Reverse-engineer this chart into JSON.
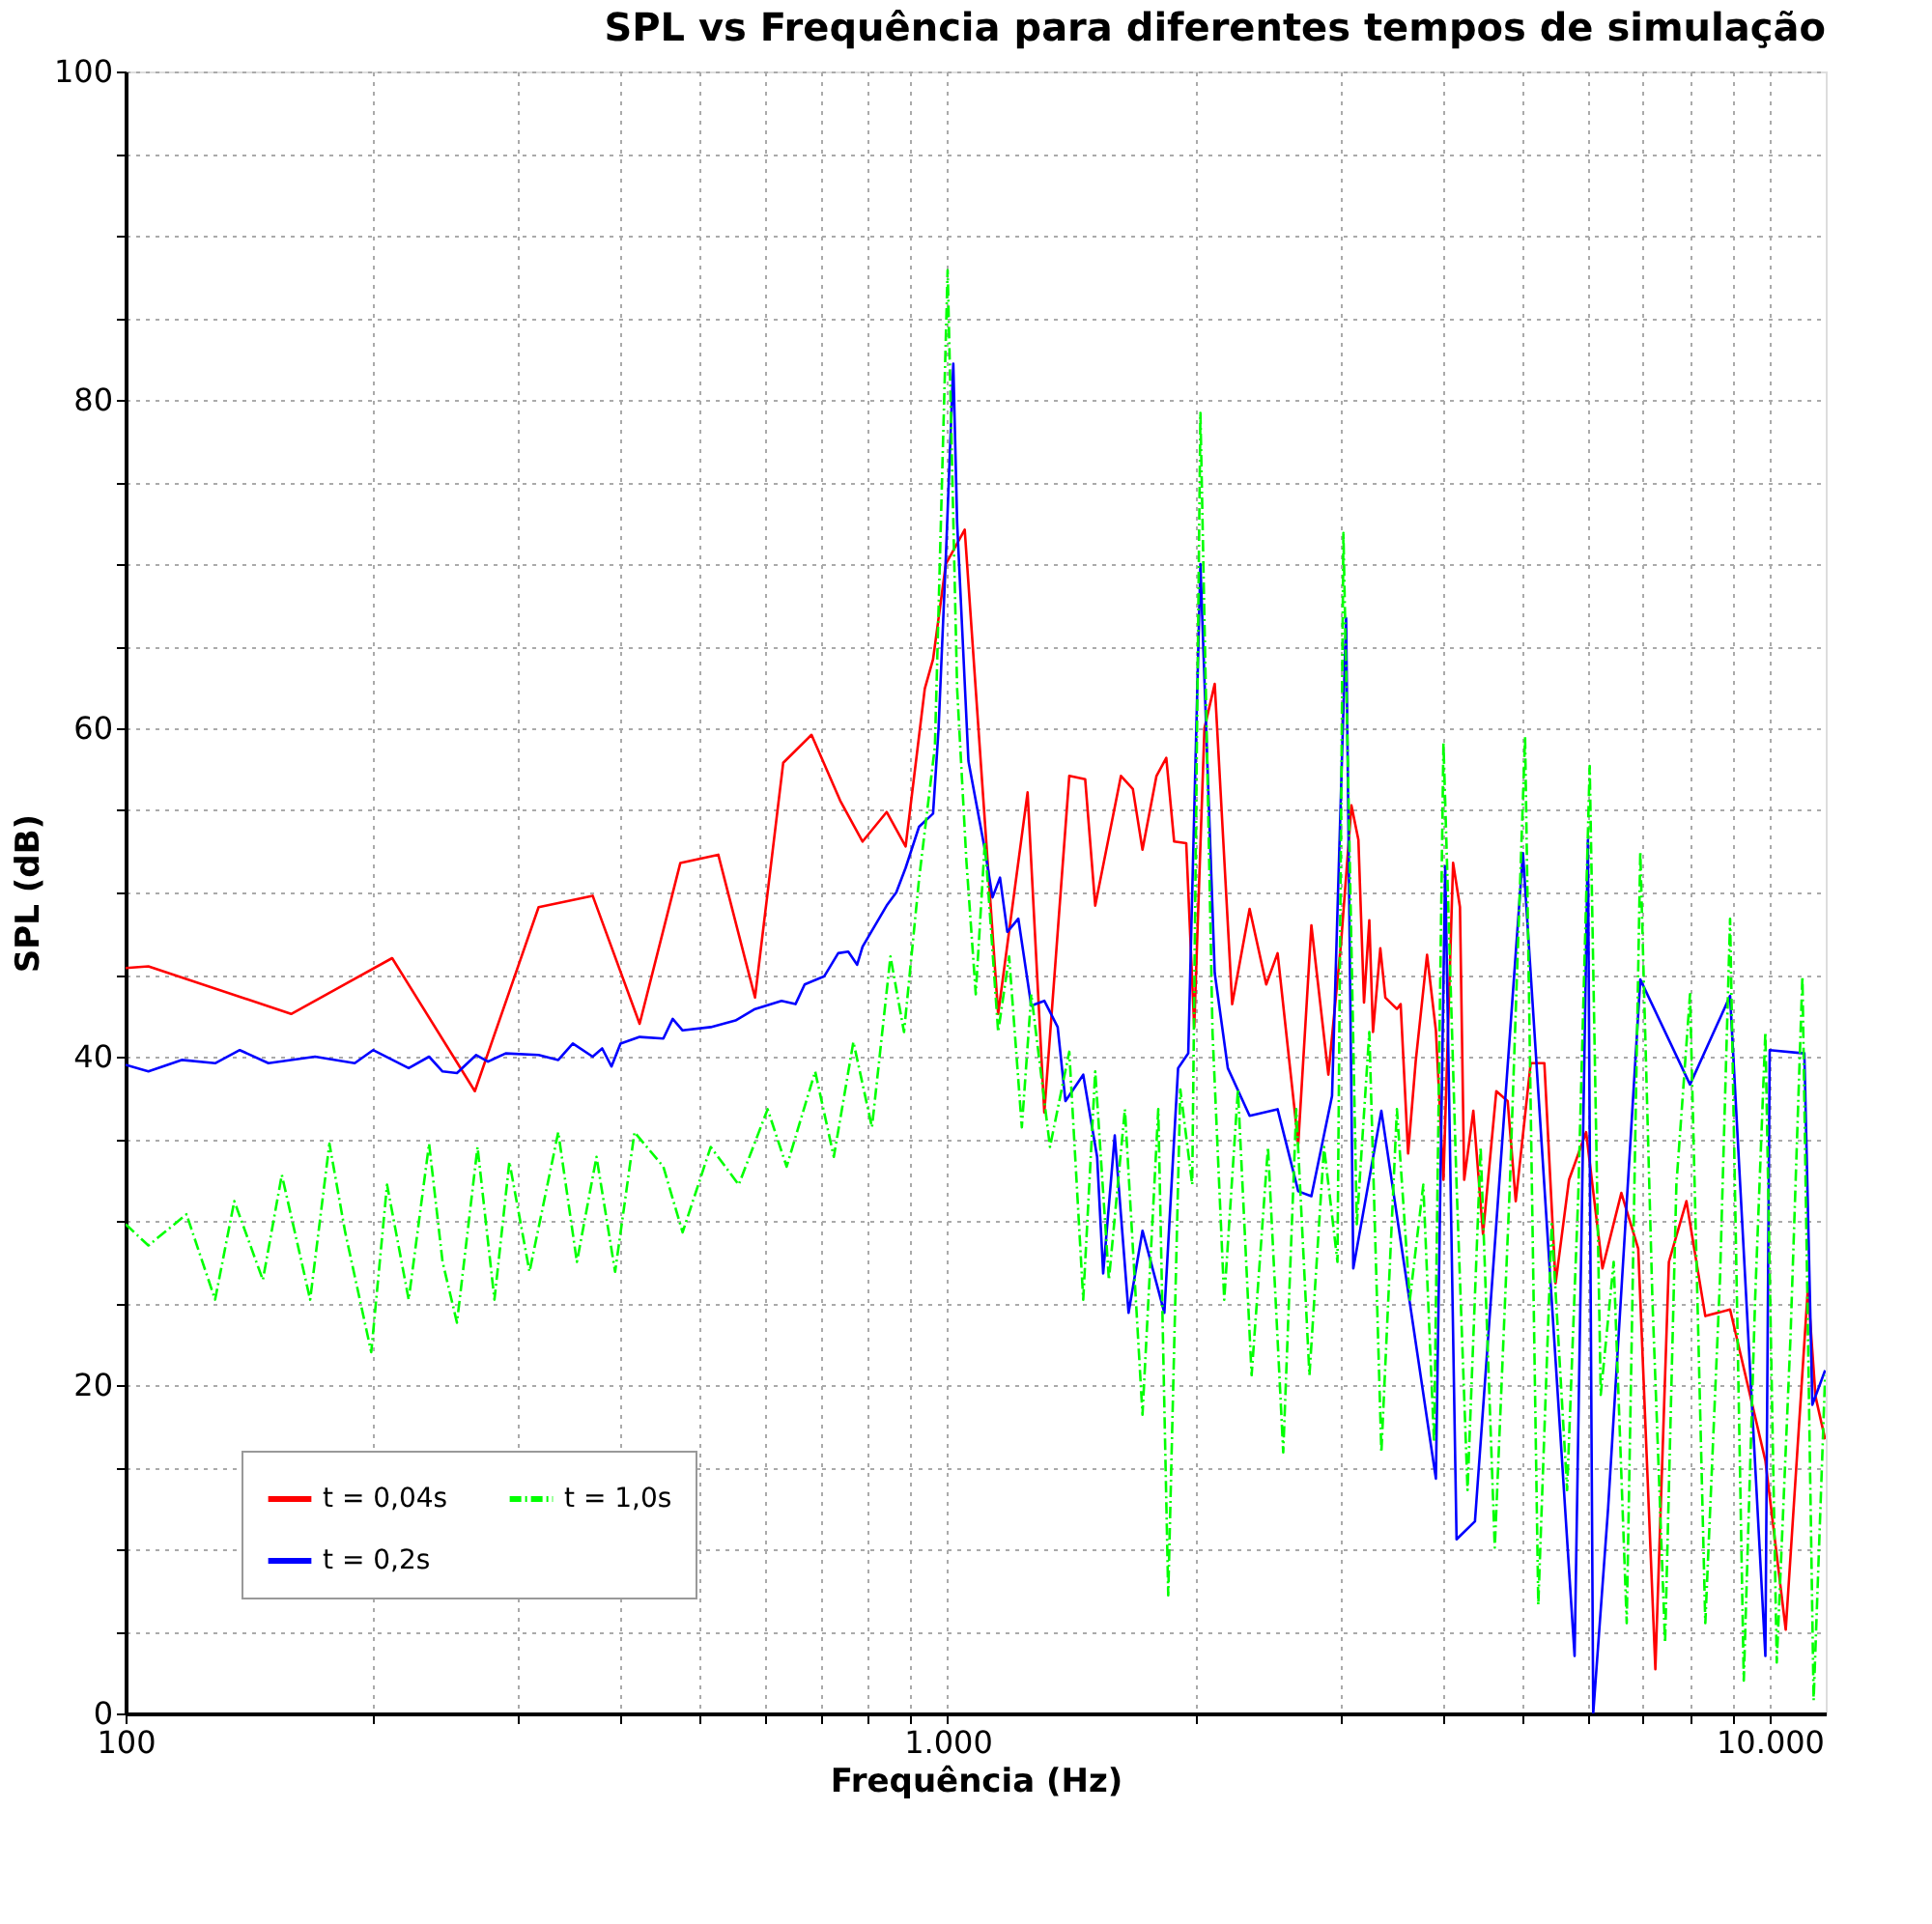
{
  "chart_data": {
    "type": "line",
    "title": "SPL vs Frequência para diferentes tempos de simulação",
    "xlabel": "Frequência (Hz)",
    "ylabel": "SPL (dB)",
    "log": "x",
    "grid": true,
    "legend": "bottom left",
    "xlim": [
      100,
      11700
    ],
    "xticks": [
      {
        "value": 100,
        "label": "100"
      },
      {
        "value": 200,
        "label": null
      },
      {
        "value": 300,
        "label": null
      },
      {
        "value": 400,
        "label": null
      },
      {
        "value": 500,
        "label": null
      },
      {
        "value": 600,
        "label": null
      },
      {
        "value": 700,
        "label": null
      },
      {
        "value": 800,
        "label": null
      },
      {
        "value": 900,
        "label": null
      },
      {
        "value": 1000,
        "label": "1.000"
      },
      {
        "value": 2000,
        "label": null
      },
      {
        "value": 3000,
        "label": null
      },
      {
        "value": 4000,
        "label": null
      },
      {
        "value": 5000,
        "label": null
      },
      {
        "value": 6000,
        "label": null
      },
      {
        "value": 7000,
        "label": null
      },
      {
        "value": 8000,
        "label": null
      },
      {
        "value": 9000,
        "label": null
      },
      {
        "value": 10000,
        "label": "10.000"
      }
    ],
    "ylim": [
      0,
      100
    ],
    "yticks": [
      0,
      {
        "value": 5,
        "label": null
      },
      {
        "value": 10,
        "label": null
      },
      {
        "value": 15,
        "label": null
      },
      20,
      {
        "value": 25,
        "label": null
      },
      {
        "value": 30,
        "label": null
      },
      {
        "value": 35,
        "label": null
      },
      40,
      {
        "value": 45,
        "label": null
      },
      {
        "value": 50,
        "label": null
      },
      {
        "value": 55,
        "label": null
      },
      60,
      {
        "value": 65,
        "label": null
      },
      {
        "value": 70,
        "label": null
      },
      {
        "value": 75,
        "label": null
      },
      80,
      {
        "value": 85,
        "label": null
      },
      {
        "value": 90,
        "label": null
      },
      {
        "value": 95,
        "label": null
      },
      100
    ],
    "series": [
      {
        "name": "t = 0,04s",
        "color": "#ff0000",
        "line_style": "solid",
        "x": [
          100,
          106.6,
          159,
          211,
          266,
          318,
          370,
          422,
          473,
          526,
          583,
          631,
          683,
          740,
          788,
          843,
          889,
          938,
          960,
          995,
          1049,
          1152,
          1251,
          1311,
          1406,
          1470,
          1512,
          1625,
          1680,
          1726,
          1795,
          1845,
          1886,
          1951,
          1995,
          2053,
          2113,
          2219,
          2330,
          2441,
          2520,
          2670,
          2770,
          2905,
          3010,
          3099,
          3160,
          3210,
          3258,
          3292,
          3360,
          3408,
          3520,
          3557,
          3632,
          3710,
          3830,
          3926,
          4010,
          4120,
          4200,
          4250,
          4360,
          4480,
          4650,
          4800,
          4910,
          5120,
          5320,
          5490,
          5700,
          5980,
          6260,
          6600,
          6920,
          7260,
          7540,
          7920,
          8350,
          8950,
          9880,
          10460,
          11130,
          11370,
          11680
        ],
        "values": [
          45.4,
          45.5,
          42.6,
          46.0,
          37.9,
          49.1,
          49.8,
          42.0,
          51.8,
          52.3,
          43.6,
          57.9,
          59.6,
          55.6,
          53.1,
          54.9,
          52.8,
          62.4,
          64.2,
          70.0,
          72.1,
          42.6,
          56.1,
          36.6,
          57.1,
          56.9,
          49.2,
          57.1,
          56.3,
          52.6,
          57.1,
          58.2,
          53.1,
          53.0,
          41.8,
          60.0,
          62.7,
          43.2,
          49.0,
          44.4,
          46.3,
          34.7,
          48.0,
          38.9,
          46.9,
          55.3,
          53.2,
          43.3,
          48.3,
          41.5,
          46.6,
          43.6,
          42.9,
          43.2,
          34.1,
          39.7,
          46.2,
          41.6,
          32.5,
          51.8,
          49.1,
          32.5,
          36.7,
          29.2,
          37.9,
          37.3,
          31.2,
          39.6,
          39.6,
          26.2,
          32.5,
          35.4,
          27.1,
          31.7,
          28.3,
          2.7,
          27.5,
          31.2,
          24.2,
          24.6,
          15.4,
          5.1,
          25.9,
          19.3,
          16.7
        ]
      },
      {
        "name": "t = 0,2s",
        "color": "#0000ff",
        "line_style": "solid",
        "x": [
          100,
          106.6,
          117,
          128.5,
          137.7,
          149.2,
          170,
          190,
          200,
          221,
          234,
          243,
          253,
          267,
          276,
          290,
          318,
          336,
          350,
          370,
          380,
          390,
          400,
          422,
          451,
          463,
          476,
          515,
          552,
          583,
          628,
          653,
          670,
          708,
          736,
          757,
          776,
          788,
          843,
          866,
          889,
          923,
          960,
          975,
          995,
          1016,
          1027,
          1060,
          1110,
          1134,
          1158,
          1182,
          1219,
          1264,
          1311,
          1361,
          1391,
          1462,
          1520,
          1546,
          1597,
          1660,
          1726,
          1835,
          1907,
          1962,
          2030,
          2113,
          2192,
          2330,
          2520,
          2670,
          2770,
          2935,
          3053,
          3115,
          3370,
          3926,
          4030,
          4160,
          4380,
          5010,
          5790,
          6010,
          6100,
          6360,
          6960,
          8000,
          8950,
          9880,
          10000,
          11020,
          11270,
          11680
        ],
        "values": [
          39.5,
          39.1,
          39.8,
          39.6,
          40.4,
          39.6,
          40.0,
          39.6,
          40.4,
          39.3,
          40.0,
          39.1,
          39.0,
          40.1,
          39.7,
          40.2,
          40.1,
          39.8,
          40.8,
          40.0,
          40.5,
          39.4,
          40.8,
          41.2,
          41.1,
          42.3,
          41.6,
          41.8,
          42.2,
          42.9,
          43.4,
          43.2,
          44.4,
          44.9,
          46.3,
          46.4,
          45.6,
          46.7,
          49.2,
          50.0,
          51.5,
          54.0,
          54.8,
          60.0,
          70.4,
          82.2,
          72.5,
          58.0,
          52.6,
          49.7,
          50.9,
          47.6,
          48.4,
          43.1,
          43.4,
          41.8,
          37.3,
          38.9,
          33.9,
          26.8,
          35.2,
          24.4,
          29.4,
          24.4,
          39.3,
          40.2,
          70.0,
          45.1,
          39.3,
          36.4,
          36.8,
          31.8,
          31.5,
          37.6,
          66.7,
          27.1,
          36.7,
          14.3,
          51.6,
          10.6,
          11.7,
          52.4,
          3.5,
          53.2,
          0,
          12.5,
          44.7,
          38.3,
          43.7,
          3.5,
          40.4,
          40.2,
          18.8,
          20.9
        ]
      },
      {
        "name": "t = 1,0s",
        "color": "#00ff00",
        "line_style": "dashed",
        "x": [
          100,
          106.6,
          118.6,
          128.5,
          135.6,
          146.9,
          154.9,
          167.7,
          177,
          185,
          199,
          208,
          221,
          234,
          243,
          253,
          268,
          281,
          293,
          310,
          336,
          354,
          374,
          394,
          416,
          451,
          476,
          515,
          557,
          604,
          637,
          690,
          727,
          768,
          809,
          852,
          885,
          923,
          965,
          1000,
          1027,
          1054,
          1082,
          1110,
          1152,
          1188,
          1231,
          1264,
          1332,
          1406,
          1462,
          1512,
          1571,
          1643,
          1726,
          1804,
          1855,
          1919,
          1984,
          2030,
          2100,
          2170,
          2255,
          2343,
          2453,
          2560,
          2655,
          2755,
          2870,
          2980,
          3030,
          3146,
          3258,
          3370,
          3520,
          3650,
          3790,
          3906,
          4010,
          4160,
          4290,
          4450,
          4630,
          4830,
          5040,
          5230,
          5430,
          5670,
          5850,
          6040,
          6230,
          6460,
          6700,
          6960,
          7200,
          7460,
          7700,
          8000,
          8350,
          8700,
          8950,
          9300,
          9600,
          9880,
          10200,
          10600,
          10960,
          11310,
          11680
        ],
        "values": [
          29.8,
          28.5,
          30.4,
          25.2,
          31.2,
          26.4,
          32.8,
          25.2,
          34.7,
          29.3,
          22.0,
          32.2,
          25.2,
          34.7,
          27.5,
          23.8,
          34.5,
          25.2,
          33.6,
          26.9,
          35.4,
          27.5,
          33.9,
          26.9,
          35.4,
          33.3,
          29.3,
          34.5,
          32.2,
          36.8,
          33.3,
          39.1,
          33.9,
          40.9,
          35.7,
          46.1,
          41.5,
          50.8,
          58.9,
          87.9,
          62.4,
          51.9,
          43.8,
          53.1,
          41.5,
          46.1,
          35.7,
          43.8,
          34.5,
          40.3,
          25.2,
          39.1,
          26.4,
          36.8,
          18.2,
          36.8,
          7.2,
          38.0,
          32.2,
          79.2,
          41.5,
          25.2,
          38.0,
          20.6,
          34.5,
          15.9,
          36.8,
          20.6,
          34.5,
          27.5,
          71.9,
          29.8,
          41.5,
          15.9,
          36.8,
          25.2,
          32.2,
          16.5,
          59.1,
          32.2,
          13.6,
          34.5,
          10.1,
          32.2,
          59.5,
          6.6,
          29.8,
          13.6,
          31.6,
          57.7,
          19.4,
          27.5,
          5.5,
          52.5,
          25.2,
          4.3,
          32.2,
          43.8,
          5.5,
          26.4,
          48.4,
          2.0,
          25.2,
          41.5,
          3.1,
          22.9,
          44.9,
          0.8,
          20.6
        ]
      }
    ]
  }
}
